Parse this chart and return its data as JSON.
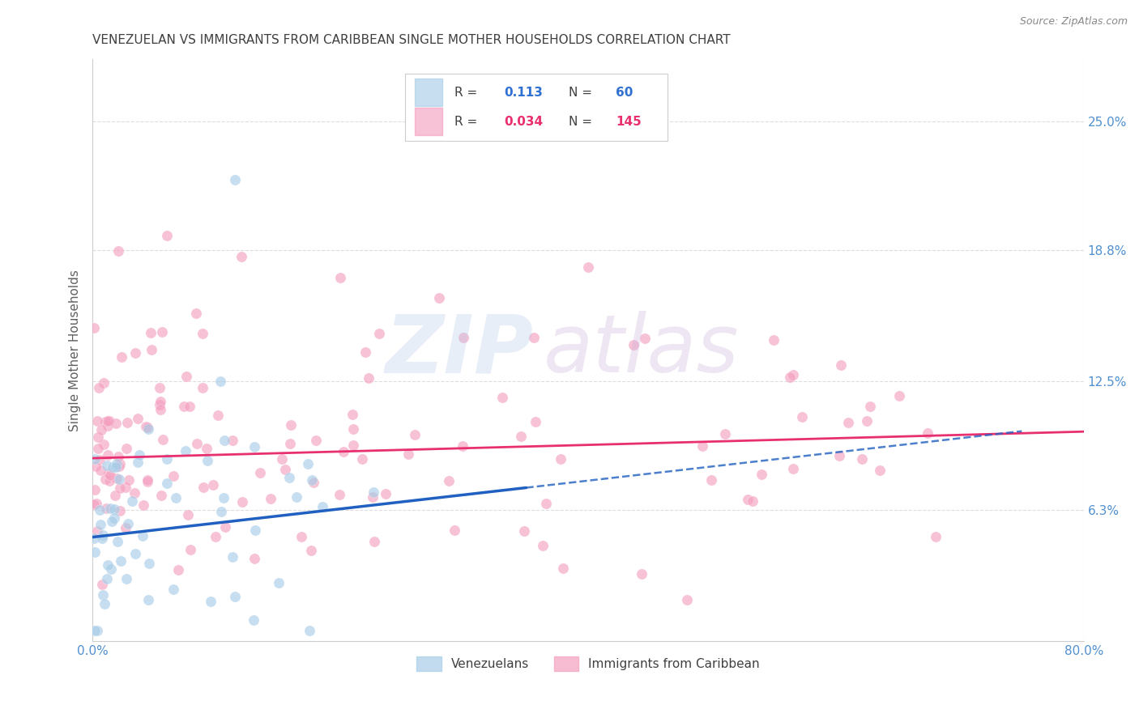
{
  "title": "VENEZUELAN VS IMMIGRANTS FROM CARIBBEAN SINGLE MOTHER HOUSEHOLDS CORRELATION CHART",
  "source": "Source: ZipAtlas.com",
  "ylabel": "Single Mother Households",
  "xmin": 0.0,
  "xmax": 0.8,
  "ymin": 0.0,
  "ymax": 0.28,
  "venezuelan_R": 0.113,
  "venezuelan_N": 60,
  "caribbean_R": 0.034,
  "caribbean_N": 145,
  "venezuelan_color": "#A8CDE8",
  "caribbean_color": "#F4A0C0",
  "venezuelan_line_color": "#2060C0",
  "caribbean_line_color": "#E83070",
  "watermark_zip_color": "#B0C8E8",
  "watermark_atlas_color": "#C8B0D8",
  "background_color": "#FFFFFF",
  "grid_color": "#DDDDDD",
  "title_color": "#404040",
  "axis_label_color": "#606060",
  "tick_label_color": "#5090D0",
  "legend_r_color": "#404040",
  "legend_val_ven_color": "#3070D0",
  "legend_val_car_color": "#E83070"
}
